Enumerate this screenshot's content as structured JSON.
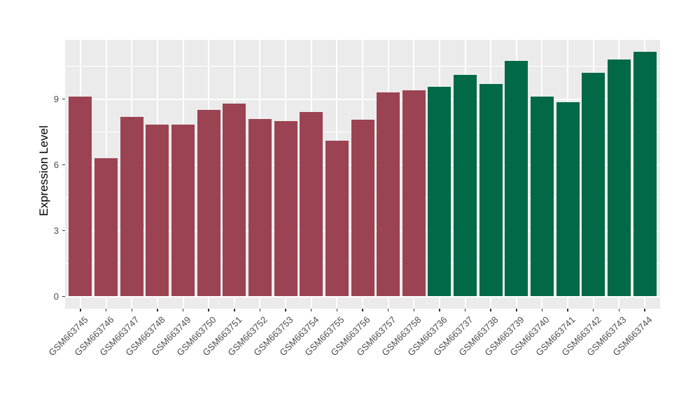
{
  "figure": {
    "background_color": "#ffffff",
    "panel_background_color": "#ebebeb",
    "gridline_color": "#ffffff",
    "axis_text_color": "#4d4d4d",
    "axis_title_color": "#000000"
  },
  "chart_data": {
    "type": "bar",
    "title": "",
    "xlabel": "",
    "ylabel": "Expression Level",
    "legend_position": "none",
    "grid": "white major+minor horizontal gridlines, white vertical gridlines at category centers, on grey panel",
    "yticks": [
      0,
      3,
      6,
      9
    ],
    "ylim": [
      -0.56,
      11.72
    ],
    "categories": [
      "GSM663745",
      "GSM663746",
      "GSM663747",
      "GSM663748",
      "GSM663749",
      "GSM663750",
      "GSM663751",
      "GSM663752",
      "GSM663753",
      "GSM663754",
      "GSM663755",
      "GSM663756",
      "GSM663757",
      "GSM663758",
      "GSM663736",
      "GSM663737",
      "GSM663738",
      "GSM663739",
      "GSM663740",
      "GSM663741",
      "GSM663742",
      "GSM663743",
      "GSM663744"
    ],
    "values": [
      9.1,
      6.3,
      8.2,
      7.85,
      7.85,
      8.5,
      8.8,
      8.1,
      8.0,
      8.4,
      7.1,
      8.05,
      9.3,
      9.4,
      9.55,
      10.1,
      9.7,
      10.75,
      9.1,
      8.85,
      10.2,
      10.8,
      11.15
    ],
    "groups": [
      "group1",
      "group1",
      "group1",
      "group1",
      "group1",
      "group1",
      "group1",
      "group1",
      "group1",
      "group1",
      "group1",
      "group1",
      "group1",
      "group1",
      "group2",
      "group2",
      "group2",
      "group2",
      "group2",
      "group2",
      "group2",
      "group2",
      "group2"
    ],
    "group_colors": {
      "group1": "#9b4352",
      "group2": "#016947"
    }
  }
}
